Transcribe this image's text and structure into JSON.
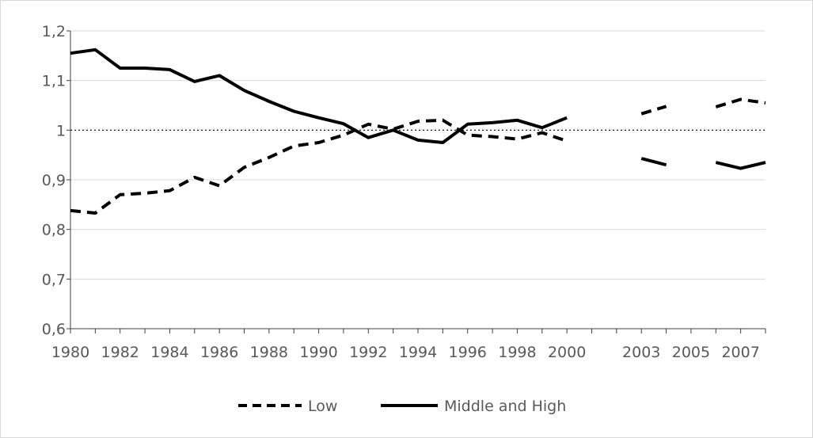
{
  "chart_data": {
    "type": "line",
    "title": "",
    "xlabel": "",
    "ylabel": "",
    "ylim": [
      0.6,
      1.2
    ],
    "yticks": [
      "0,6",
      "0,7",
      "0,8",
      "0,9",
      "1",
      "1,1",
      "1,2"
    ],
    "ytick_values": [
      0.6,
      0.7,
      0.8,
      0.9,
      1.0,
      1.1,
      1.2
    ],
    "xtick_labels": [
      "1980",
      "1982",
      "1984",
      "1986",
      "1988",
      "1990",
      "1992",
      "1994",
      "1996",
      "1998",
      "2000",
      "2003",
      "2005",
      "2007"
    ],
    "categories": [
      "1980",
      "1981",
      "1982",
      "1983",
      "1984",
      "1985",
      "1986",
      "1987",
      "1988",
      "1989",
      "1990",
      "1991",
      "1992",
      "1993",
      "1994",
      "1995",
      "1996",
      "1997",
      "1998",
      "1999",
      "2000",
      "2001",
      "2002",
      "2003",
      "2004",
      "2005",
      "2006",
      "2007",
      "2008"
    ],
    "reference_line": 1.0,
    "grid": true,
    "legend_position": "bottom",
    "series": [
      {
        "name": "Low",
        "style": "dashed",
        "color": "#000000",
        "values": [
          0.838,
          0.833,
          0.87,
          0.873,
          0.878,
          0.905,
          0.888,
          0.925,
          0.945,
          0.968,
          0.975,
          0.99,
          1.012,
          1.002,
          1.018,
          1.02,
          0.99,
          0.987,
          0.982,
          0.995,
          0.978,
          null,
          null,
          1.033,
          1.048,
          null,
          1.047,
          1.062,
          1.055
        ]
      },
      {
        "name": "Middle and High",
        "style": "solid",
        "color": "#000000",
        "values": [
          1.155,
          1.162,
          1.125,
          1.125,
          1.122,
          1.098,
          1.11,
          1.08,
          1.058,
          1.038,
          1.025,
          1.013,
          0.985,
          1.0,
          0.98,
          0.975,
          1.012,
          1.015,
          1.02,
          1.005,
          1.025,
          null,
          null,
          0.943,
          0.93,
          null,
          0.935,
          0.923,
          0.935
        ]
      }
    ]
  }
}
